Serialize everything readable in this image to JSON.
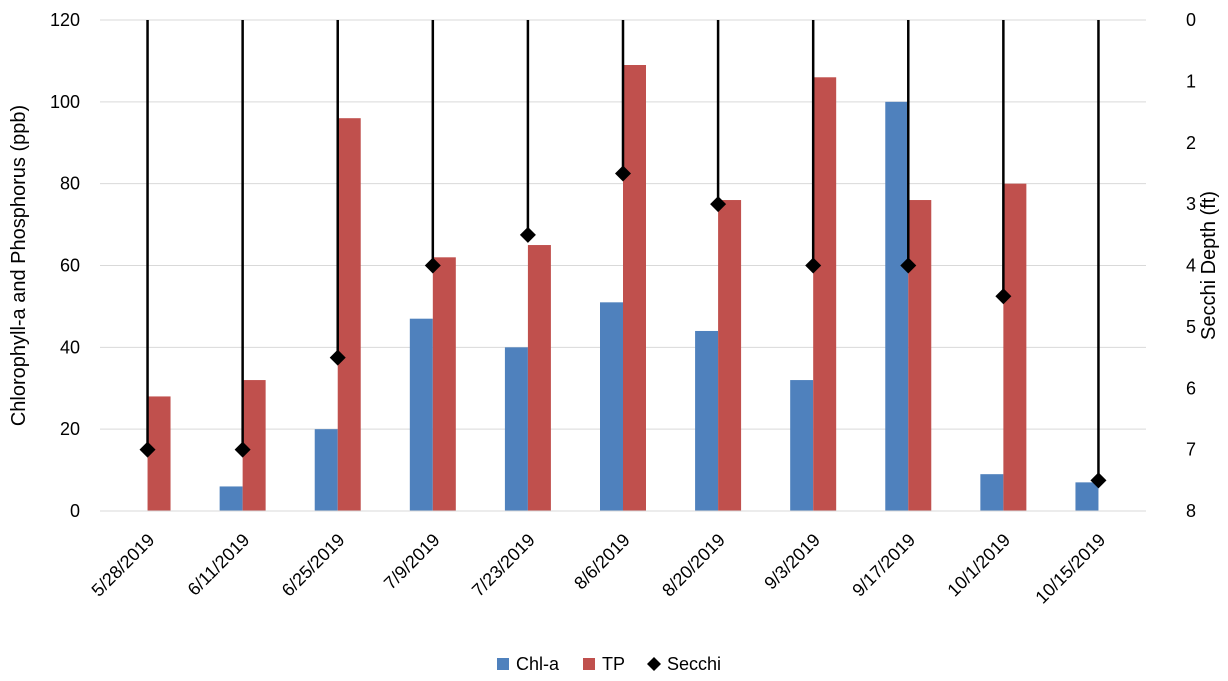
{
  "chart_data": {
    "type": "bar",
    "categories": [
      "5/28/2019",
      "6/11/2019",
      "6/25/2019",
      "7/9/2019",
      "7/23/2019",
      "8/6/2019",
      "8/20/2019",
      "9/3/2019",
      "9/17/2019",
      "10/1/2019",
      "10/15/2019"
    ],
    "series": [
      {
        "name": "Chl-a",
        "type": "bar",
        "axis": "left",
        "color": "#4F81BD",
        "values": [
          null,
          6,
          20,
          47,
          40,
          51,
          44,
          32,
          100,
          9,
          7
        ]
      },
      {
        "name": "TP",
        "type": "bar",
        "axis": "left",
        "color": "#C0504D",
        "values": [
          28,
          32,
          96,
          62,
          65,
          109,
          76,
          106,
          76,
          80,
          null
        ]
      },
      {
        "name": "Secchi",
        "type": "marker-with-drop-line",
        "axis": "right",
        "color": "#000000",
        "values": [
          7,
          7,
          5.5,
          4,
          3.5,
          2.5,
          3,
          4,
          4,
          4.5,
          7.5
        ]
      }
    ],
    "ylabel": "Chlorophyll-a and Phosphorus (ppb)",
    "ylim": [
      0,
      120
    ],
    "yticks": [
      0,
      20,
      40,
      60,
      80,
      100,
      120
    ],
    "y2label": "Secchi Depth (ft)",
    "y2lim": [
      0,
      8
    ],
    "y2_reversed": true,
    "y2ticks": [
      0,
      1,
      2,
      3,
      4,
      5,
      6,
      7,
      8
    ],
    "grid": true,
    "legend_position": "bottom-center"
  }
}
